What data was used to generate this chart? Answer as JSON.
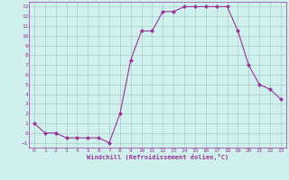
{
  "x": [
    0,
    1,
    2,
    3,
    4,
    5,
    6,
    7,
    8,
    9,
    10,
    11,
    12,
    13,
    14,
    15,
    16,
    17,
    18,
    19,
    20,
    21,
    22,
    23
  ],
  "y": [
    1,
    0,
    0,
    -0.5,
    -0.5,
    -0.5,
    -0.5,
    -1,
    2,
    7.5,
    10.5,
    10.5,
    12.5,
    12.5,
    13,
    13,
    13,
    13,
    13,
    10.5,
    7,
    5,
    4.5,
    3.5
  ],
  "line_color": "#993399",
  "marker": "D",
  "marker_size": 2,
  "bg_color": "#cff0ec",
  "grid_color": "#aacccc",
  "xlabel": "Windchill (Refroidissement éolien,°C)",
  "xlabel_color": "#993399",
  "tick_color": "#993399",
  "ylim": [
    -1.5,
    13.5
  ],
  "xlim": [
    -0.5,
    23.5
  ],
  "yticks": [
    -1,
    0,
    1,
    2,
    3,
    4,
    5,
    6,
    7,
    8,
    9,
    10,
    11,
    12,
    13
  ],
  "xticks": [
    0,
    1,
    2,
    3,
    4,
    5,
    6,
    7,
    8,
    9,
    10,
    11,
    12,
    13,
    14,
    15,
    16,
    17,
    18,
    19,
    20,
    21,
    22,
    23
  ]
}
